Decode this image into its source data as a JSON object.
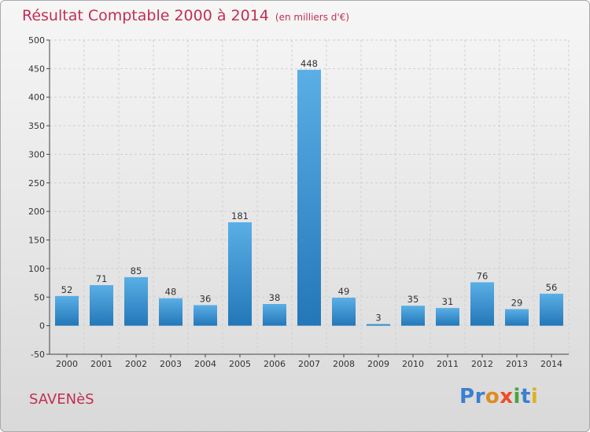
{
  "header": {
    "title": "Résultat Comptable 2000 à 2014",
    "unit": "(en milliers d'€)"
  },
  "footer": {
    "town": "SAVENèS",
    "logo_letters": [
      {
        "char": "P",
        "color": "#3b7fd0"
      },
      {
        "char": "r",
        "color": "#3b7fd0"
      },
      {
        "char": "o",
        "color": "#e08a1e"
      },
      {
        "char": "x",
        "color": "#ee4b2b"
      },
      {
        "char": "i",
        "color": "#49a341"
      },
      {
        "char": "t",
        "color": "#3b7fd0"
      },
      {
        "char": "i",
        "color": "#e0b020"
      }
    ]
  },
  "colors": {
    "title": "#c12f52",
    "bar_light": "#5aafe6",
    "bar_dark": "#2377b8",
    "grid": "#cfcfcf"
  },
  "chart_data": {
    "type": "bar",
    "title": "Résultat Comptable 2000 à 2014",
    "subtitle": "(en milliers d'€)",
    "categories": [
      "2000",
      "2001",
      "2002",
      "2003",
      "2004",
      "2005",
      "2006",
      "2007",
      "2008",
      "2009",
      "2010",
      "2011",
      "2012",
      "2013",
      "2014"
    ],
    "values": [
      52,
      71,
      85,
      48,
      36,
      181,
      38,
      448,
      49,
      3,
      35,
      31,
      76,
      29,
      56
    ],
    "ylim": [
      -50,
      500
    ],
    "yticks": [
      -50,
      0,
      50,
      100,
      150,
      200,
      250,
      300,
      350,
      400,
      450,
      500
    ],
    "grid": true,
    "data_labels": true
  }
}
